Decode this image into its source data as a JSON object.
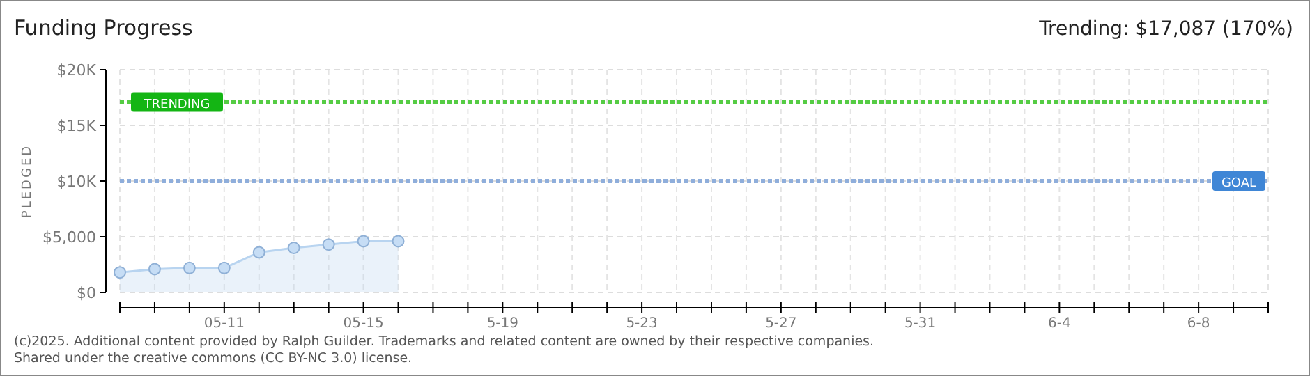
{
  "chart_data": {
    "type": "area",
    "title": "Funding Progress",
    "subtitle": "Trending: $17,087 (170%)",
    "ylabel": "PLEDGED",
    "annotations": [
      "(c)2025. Additional content provided by Ralph Guilder. Trademarks and related content are owned by their respective companies.",
      "Shared under the creative commons (CC BY-NC 3.0) license."
    ],
    "x": [
      "2025-05-08",
      "2025-05-09",
      "2025-05-10",
      "2025-05-11",
      "2025-05-12",
      "2025-05-13",
      "2025-05-14",
      "2025-05-15",
      "2025-05-16"
    ],
    "series": [
      {
        "color": "#b8d4f0",
        "values": [
          1800,
          2100,
          2200,
          2200,
          3600,
          4000,
          4300,
          4600,
          4600
        ]
      }
    ],
    "xlim": [
      "2025-05-08",
      "2025-06-10"
    ],
    "xticks": [
      {
        "value": "2025-05-08",
        "label": null
      },
      {
        "value": "2025-05-09",
        "label": null
      },
      {
        "value": "2025-05-10",
        "label": null
      },
      {
        "value": "2025-05-11",
        "label": "05-11"
      },
      {
        "value": "2025-05-12",
        "label": null
      },
      {
        "value": "2025-05-13",
        "label": null
      },
      {
        "value": "2025-05-14",
        "label": null
      },
      {
        "value": "2025-05-15",
        "label": "05-15"
      },
      {
        "value": "2025-05-16",
        "label": null
      },
      {
        "value": "2025-05-17",
        "label": null
      },
      {
        "value": "2025-05-18",
        "label": null
      },
      {
        "value": "2025-05-19",
        "label": "5-19"
      },
      {
        "value": "2025-05-20",
        "label": null
      },
      {
        "value": "2025-05-21",
        "label": null
      },
      {
        "value": "2025-05-22",
        "label": null
      },
      {
        "value": "2025-05-23",
        "label": "5-23"
      },
      {
        "value": "2025-05-24",
        "label": null
      },
      {
        "value": "2025-05-25",
        "label": null
      },
      {
        "value": "2025-05-26",
        "label": null
      },
      {
        "value": "2025-05-27",
        "label": "5-27"
      },
      {
        "value": "2025-05-28",
        "label": null
      },
      {
        "value": "2025-05-29",
        "label": null
      },
      {
        "value": "2025-05-30",
        "label": null
      },
      {
        "value": "2025-05-31",
        "label": "5-31"
      },
      {
        "value": "2025-06-01",
        "label": null
      },
      {
        "value": "2025-06-02",
        "label": null
      },
      {
        "value": "2025-06-03",
        "label": null
      },
      {
        "value": "2025-06-04",
        "label": "6-4"
      },
      {
        "value": "2025-06-05",
        "label": null
      },
      {
        "value": "2025-06-06",
        "label": null
      },
      {
        "value": "2025-06-07",
        "label": null
      },
      {
        "value": "2025-06-08",
        "label": "6-8"
      },
      {
        "value": "2025-06-09",
        "label": null
      },
      {
        "value": "2025-06-10",
        "label": null
      }
    ],
    "ylim": [
      0,
      20000
    ],
    "yticks": [
      {
        "value": 0,
        "label": "$0"
      },
      {
        "value": 5000,
        "label": "$5,000"
      },
      {
        "value": 10000,
        "label": "$10K"
      },
      {
        "value": 15000,
        "label": "$15K"
      },
      {
        "value": 20000,
        "label": "$20K"
      }
    ],
    "ref_lines": [
      {
        "axis": "y",
        "value": 17087,
        "label": "TRENDING",
        "color": "#55cc44",
        "line_style": "dotted"
      },
      {
        "axis": "y",
        "value": 10000,
        "label": "GOAL",
        "color": "#8faedb",
        "line_style": "dotted"
      }
    ],
    "grid": true,
    "marker": "circle",
    "line_style": "solid"
  }
}
